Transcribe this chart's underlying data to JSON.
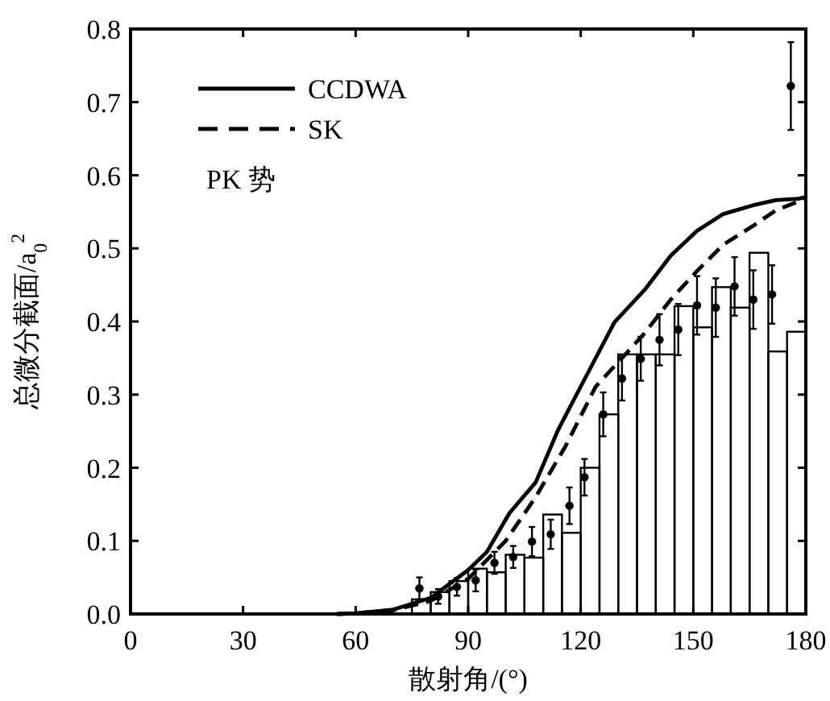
{
  "chart_data": {
    "type": "histogram",
    "xlabel": "散射角/(°)",
    "ylabel": "总微分截面/a$_{0}$$^{2}$",
    "bins": [
      75,
      80,
      85,
      90,
      95,
      100,
      105,
      110,
      115,
      120,
      125,
      130,
      135,
      140,
      145,
      150,
      155,
      160,
      165,
      170,
      175,
      180
    ],
    "values": [
      0.02,
      0.03,
      0.045,
      0.062,
      0.057,
      0.081,
      0.077,
      0.136,
      0.111,
      0.2,
      0.273,
      0.355,
      0.355,
      0.355,
      0.421,
      0.392,
      0.447,
      0.419,
      0.494,
      0.359,
      0.386
    ],
    "color": "#000000",
    "series": [
      {
        "name": "CCDWA",
        "type": "line",
        "line_style": "solid",
        "color": "#000000",
        "x": [
          55,
          60,
          70,
          80,
          90,
          95,
          101,
          108,
          114,
          120,
          129,
          137,
          144,
          151,
          158,
          166,
          172,
          178,
          180
        ],
        "values": [
          0,
          0.001,
          0.006,
          0.022,
          0.06,
          0.085,
          0.138,
          0.18,
          0.252,
          0.311,
          0.399,
          0.443,
          0.49,
          0.524,
          0.547,
          0.559,
          0.566,
          0.568,
          0.57
        ]
      },
      {
        "name": "SK",
        "type": "line",
        "line_style": "dashed",
        "color": "#000000",
        "x": [
          55,
          60,
          70,
          80,
          90,
          100,
          108,
          116,
          124,
          131,
          137,
          144,
          151,
          158,
          166,
          172,
          178,
          180
        ],
        "values": [
          0,
          0.001,
          0.005,
          0.018,
          0.048,
          0.1,
          0.16,
          0.23,
          0.311,
          0.35,
          0.384,
          0.43,
          0.469,
          0.505,
          0.531,
          0.552,
          0.564,
          0.568
        ]
      },
      {
        "type": "scatter",
        "marker": "circle",
        "color": "#000000",
        "x": [
          77,
          82,
          87,
          92,
          97,
          102,
          107,
          112,
          117,
          121,
          126,
          131,
          136,
          141,
          146,
          151,
          156,
          161,
          166,
          171,
          176
        ],
        "values": [
          0.035,
          0.024,
          0.037,
          0.046,
          0.07,
          0.078,
          0.099,
          0.109,
          0.148,
          0.187,
          0.273,
          0.322,
          0.349,
          0.375,
          0.389,
          0.422,
          0.419,
          0.448,
          0.43,
          0.437,
          0.722
        ],
        "errors": [
          0.015,
          0.01,
          0.012,
          0.015,
          0.015,
          0.015,
          0.02,
          0.02,
          0.025,
          0.025,
          0.03,
          0.03,
          0.03,
          0.035,
          0.035,
          0.04,
          0.04,
          0.04,
          0.04,
          0.04,
          0.06
        ]
      }
    ],
    "annotations": [
      "PK 势"
    ],
    "legend": "top left",
    "xlim": [
      0,
      180
    ],
    "xticks": [
      0,
      30,
      60,
      90,
      120,
      150,
      180
    ],
    "ylim": [
      0,
      0.8
    ],
    "yticks": [
      {
        "value": 0,
        "label": "0.0"
      },
      {
        "value": 0.1,
        "label": "0.1"
      },
      {
        "value": 0.2,
        "label": "0.2"
      },
      {
        "value": 0.3,
        "label": "0.3"
      },
      {
        "value": 0.4,
        "label": "0.4"
      },
      {
        "value": 0.5,
        "label": "0.5"
      },
      {
        "value": 0.6,
        "label": "0.6"
      },
      {
        "value": 0.7,
        "label": "0.7"
      },
      {
        "value": 0.8,
        "label": "0.8"
      }
    ]
  }
}
